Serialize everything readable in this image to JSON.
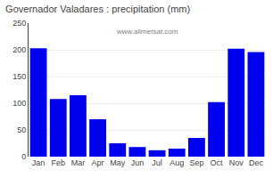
{
  "chart_data": {
    "type": "bar",
    "title": "Governador Valadares : precipitation (mm)",
    "categories": [
      "Jan",
      "Feb",
      "Mar",
      "Apr",
      "May",
      "Jun",
      "Jul",
      "Aug",
      "Sep",
      "Oct",
      "Nov",
      "Dec"
    ],
    "values": [
      203,
      108,
      115,
      70,
      25,
      18,
      12,
      15,
      35,
      102,
      202,
      196
    ],
    "color": "#0000EE",
    "ylim": [
      0,
      250
    ],
    "yticks": [
      0,
      50,
      100,
      150,
      200,
      250
    ],
    "grid": true,
    "annotations": [
      "www.allmetsat.com"
    ]
  }
}
